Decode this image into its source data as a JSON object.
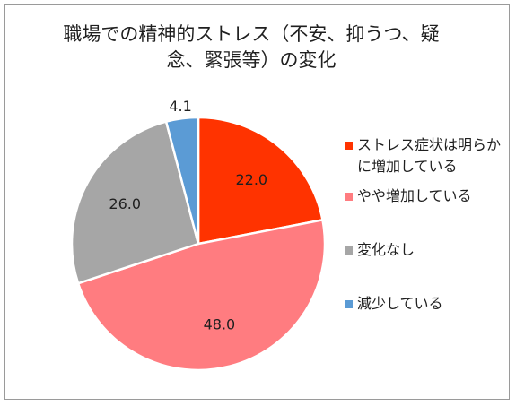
{
  "chart_data": {
    "type": "pie",
    "title_lines": [
      "職場での精神的ストレス（不安、抑うつ、疑",
      "念、緊張等）の変化"
    ],
    "categories": [
      "ストレス症状は明らかに増加している",
      "やや増加している",
      "変化なし",
      "減少している"
    ],
    "values": [
      22.0,
      48.0,
      26.0,
      4.1
    ],
    "labels": [
      "22.0",
      "48.0",
      "26.0",
      "4.1"
    ],
    "colors": [
      "#ff3300",
      "#ff7c80",
      "#a6a6a6",
      "#5b9bd5"
    ],
    "start_angle_deg": 0,
    "direction": "clockwise",
    "legend_position": "right"
  }
}
